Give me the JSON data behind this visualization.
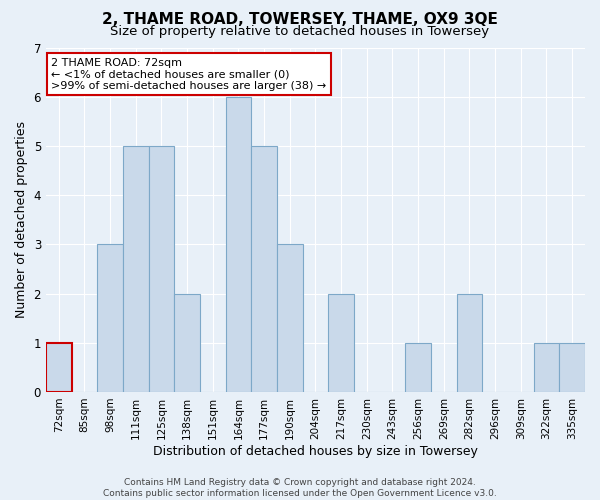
{
  "title": "2, THAME ROAD, TOWERSEY, THAME, OX9 3QE",
  "subtitle": "Size of property relative to detached houses in Towersey",
  "xlabel": "Distribution of detached houses by size in Towersey",
  "ylabel": "Number of detached properties",
  "categories": [
    "72sqm",
    "85sqm",
    "98sqm",
    "111sqm",
    "125sqm",
    "138sqm",
    "151sqm",
    "164sqm",
    "177sqm",
    "190sqm",
    "204sqm",
    "217sqm",
    "230sqm",
    "243sqm",
    "256sqm",
    "269sqm",
    "282sqm",
    "296sqm",
    "309sqm",
    "322sqm",
    "335sqm"
  ],
  "values": [
    1,
    0,
    3,
    5,
    5,
    2,
    0,
    6,
    5,
    3,
    0,
    2,
    0,
    0,
    1,
    0,
    2,
    0,
    0,
    1,
    1
  ],
  "bar_color": "#c9d9ea",
  "bar_edge_color": "#7da8c8",
  "highlight_index": 0,
  "highlight_edge_color": "#cc0000",
  "ylim": [
    0,
    7
  ],
  "yticks": [
    0,
    1,
    2,
    3,
    4,
    5,
    6,
    7
  ],
  "annotation_title": "2 THAME ROAD: 72sqm",
  "annotation_line1": "← <1% of detached houses are smaller (0)",
  "annotation_line2": ">99% of semi-detached houses are larger (38) →",
  "annotation_box_color": "#ffffff",
  "annotation_border_color": "#cc0000",
  "bg_color": "#e8f0f8",
  "grid_color": "#ffffff",
  "footer_line1": "Contains HM Land Registry data © Crown copyright and database right 2024.",
  "footer_line2": "Contains public sector information licensed under the Open Government Licence v3.0.",
  "title_fontsize": 11,
  "subtitle_fontsize": 9.5,
  "axis_label_fontsize": 9,
  "tick_fontsize": 7.5,
  "annotation_fontsize": 8,
  "footer_fontsize": 6.5
}
